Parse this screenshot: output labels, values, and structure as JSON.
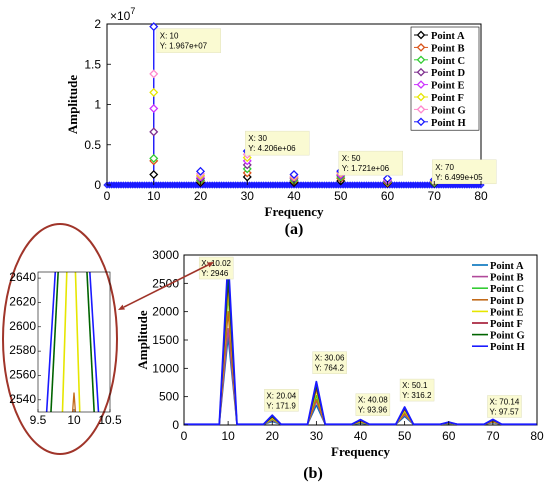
{
  "chart_data": [
    {
      "type": "line",
      "caption": "(a)",
      "xlabel": "Frequency",
      "ylabel": "Amplitude",
      "y_exponent": "×10",
      "y_exponent_power": "7",
      "xlim": [
        0,
        80
      ],
      "ylim": [
        0,
        2
      ],
      "xticks": [
        0,
        10,
        20,
        30,
        40,
        50,
        60,
        70,
        80
      ],
      "yticks": [
        0,
        0.5,
        1,
        1.5,
        2
      ],
      "ytick_labels": [
        "0",
        "0.5",
        "1",
        "1.5",
        "2"
      ],
      "legend_position": "top-right",
      "series": [
        {
          "name": "Point A",
          "color": "#000000",
          "marker": "diamond"
        },
        {
          "name": "Point B",
          "color": "#d95319",
          "marker": "diamond"
        },
        {
          "name": "Point C",
          "color": "#33cc33",
          "marker": "diamond"
        },
        {
          "name": "Point D",
          "color": "#7e2f8e",
          "marker": "diamond"
        },
        {
          "name": "Point E",
          "color": "#cc33ff",
          "marker": "diamond"
        },
        {
          "name": "Point F",
          "color": "#e6e600",
          "marker": "diamond"
        },
        {
          "name": "Point G",
          "color": "#ff88cc",
          "marker": "diamond"
        },
        {
          "name": "Point H",
          "color": "#1a1aff",
          "marker": "diamond"
        }
      ],
      "peaks": [
        {
          "x": 10,
          "values": [
            0.13,
            0.3,
            0.33,
            0.66,
            0.95,
            1.15,
            1.38,
            1.967
          ]
        },
        {
          "x": 20,
          "values": [
            0.03,
            0.05,
            0.06,
            0.08,
            0.1,
            0.12,
            0.14,
            0.17
          ]
        },
        {
          "x": 30,
          "values": [
            0.1,
            0.15,
            0.2,
            0.25,
            0.3,
            0.34,
            0.38,
            0.4206
          ]
        },
        {
          "x": 40,
          "values": [
            0.03,
            0.05,
            0.06,
            0.08,
            0.09,
            0.1,
            0.11,
            0.13
          ]
        },
        {
          "x": 50,
          "values": [
            0.05,
            0.08,
            0.1,
            0.12,
            0.13,
            0.15,
            0.16,
            0.1721
          ]
        },
        {
          "x": 60,
          "values": [
            0.02,
            0.03,
            0.04,
            0.05,
            0.06,
            0.07,
            0.07,
            0.08
          ]
        },
        {
          "x": 70,
          "values": [
            0.02,
            0.03,
            0.03,
            0.04,
            0.05,
            0.05,
            0.06,
            0.065
          ]
        }
      ],
      "datatips": [
        {
          "x": 10,
          "y": 1.967,
          "line1": "X: 10",
          "line2": "Y: 1.967e+07"
        },
        {
          "x": 30,
          "y": 0.4206,
          "line1": "X: 30",
          "line2": "Y: 4.206e+06"
        },
        {
          "x": 50,
          "y": 0.1721,
          "line1": "X: 50",
          "line2": "Y: 1.721e+06"
        },
        {
          "x": 70,
          "y": 0.065,
          "line1": "X: 70",
          "line2": "Y: 6.499e+05"
        }
      ]
    },
    {
      "type": "line",
      "caption": "(b)",
      "xlabel": "Frequency",
      "ylabel": "Amplitude",
      "xlim": [
        0,
        80
      ],
      "ylim": [
        0,
        3000
      ],
      "xticks": [
        0,
        10,
        20,
        30,
        40,
        50,
        60,
        70,
        80
      ],
      "yticks": [
        0,
        500,
        1000,
        1500,
        2000,
        2500,
        3000
      ],
      "legend_position": "top-right",
      "series": [
        {
          "name": "Point A",
          "color": "#0072bd"
        },
        {
          "name": "Point B",
          "color": "#b0499a"
        },
        {
          "name": "Point C",
          "color": "#33cc33"
        },
        {
          "name": "Point D",
          "color": "#c26a1a"
        },
        {
          "name": "Point E",
          "color": "#e6e600"
        },
        {
          "name": "Point F",
          "color": "#a2142f"
        },
        {
          "name": "Point G",
          "color": "#006400"
        },
        {
          "name": "Point H",
          "color": "#1a1aff"
        }
      ],
      "peaks": [
        {
          "x": 10,
          "values": [
            1550,
            1700,
            2300,
            2000,
            2400,
            2550,
            2650,
            2946
          ]
        },
        {
          "x": 20,
          "values": [
            60,
            80,
            100,
            110,
            120,
            140,
            150,
            171.9
          ]
        },
        {
          "x": 30,
          "values": [
            350,
            420,
            520,
            450,
            600,
            650,
            700,
            764.2
          ]
        },
        {
          "x": 40,
          "values": [
            30,
            40,
            50,
            55,
            65,
            75,
            85,
            93.96
          ]
        },
        {
          "x": 50,
          "values": [
            150,
            180,
            220,
            200,
            250,
            280,
            300,
            316.2
          ]
        },
        {
          "x": 60,
          "values": [
            20,
            25,
            30,
            30,
            35,
            40,
            45,
            50
          ]
        },
        {
          "x": 70,
          "values": [
            40,
            50,
            60,
            55,
            70,
            80,
            90,
            97.57
          ]
        }
      ],
      "datatips": [
        {
          "x": 10.02,
          "y": 2946,
          "line1": "X: 10.02",
          "line2": "Y: 2946"
        },
        {
          "x": 20.04,
          "y": 171.9,
          "line1": "X: 20.04",
          "line2": "Y: 171.9"
        },
        {
          "x": 30.06,
          "y": 764.2,
          "line1": "X: 30.06",
          "line2": "Y: 764.2"
        },
        {
          "x": 40.08,
          "y": 93.96,
          "line1": "X: 40.08",
          "line2": "Y: 93.96"
        },
        {
          "x": 50.1,
          "y": 316.2,
          "line1": "X: 50.1",
          "line2": "Y: 316.2"
        },
        {
          "x": 70.14,
          "y": 97.57,
          "line1": "X: 70.14",
          "line2": "Y: 97.57"
        }
      ]
    },
    {
      "type": "line",
      "caption": "zoom inset of (b) around x = 10",
      "xlim": [
        9.5,
        10.5
      ],
      "ylim": [
        2530,
        2645
      ],
      "xticks": [
        9.5,
        10,
        10.5
      ],
      "xtick_labels": [
        "9.5",
        "10",
        "10.5"
      ],
      "yticks": [
        2540,
        2560,
        2580,
        2600,
        2620,
        2640
      ],
      "lines": [
        {
          "color": "#1a1aff",
          "x_at_2530": 9.62,
          "x_at_2645": 9.74
        },
        {
          "color": "#006400",
          "x_at_2530": 9.68,
          "x_at_2645": 9.78
        },
        {
          "color": "#e6e600",
          "x_at_2530": 9.84,
          "x_at_2645": 9.9
        },
        {
          "color": "#e6e600",
          "x_at_2530": 10.08,
          "x_at_2645": 10.02
        },
        {
          "color": "#006400",
          "x_at_2530": 10.28,
          "x_at_2645": 10.18
        },
        {
          "color": "#1a1aff",
          "x_at_2530": 10.34,
          "x_at_2645": 10.22
        }
      ],
      "small_peak": {
        "x": 10.0,
        "y": 2546,
        "color": "#c26a1a"
      }
    }
  ]
}
